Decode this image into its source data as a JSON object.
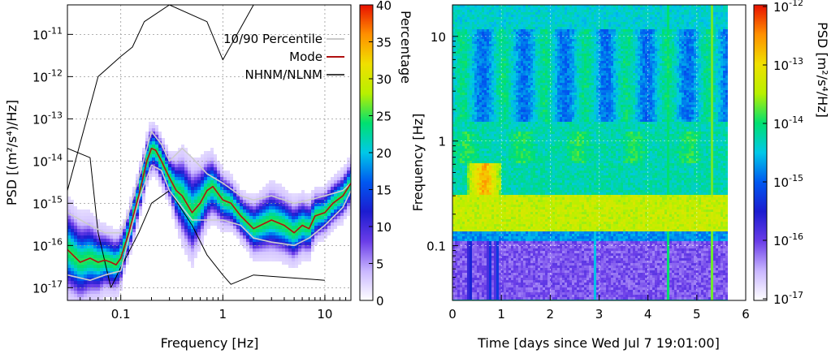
{
  "chart_data": [
    {
      "type": "heatmap",
      "subtype": "probabilistic-psd",
      "xlabel": "Frequency [Hz]",
      "ylabel": "PSD [(m²/s⁴)/Hz]",
      "xscale": "log",
      "yscale": "log",
      "xlim": [
        0.03,
        18
      ],
      "ylim": [
        5e-18,
        5e-11
      ],
      "x_ticks": [
        {
          "value": 0.1,
          "label": "0.1"
        },
        {
          "value": 1,
          "label": "1"
        },
        {
          "value": 10,
          "label": "10"
        }
      ],
      "y_ticks": [
        {
          "value": 1e-17,
          "mant": "10",
          "exp": "-17"
        },
        {
          "value": 1e-16,
          "mant": "10",
          "exp": "-16"
        },
        {
          "value": 1e-15,
          "mant": "10",
          "exp": "-15"
        },
        {
          "value": 1e-14,
          "mant": "10",
          "exp": "-14"
        },
        {
          "value": 1e-13,
          "mant": "10",
          "exp": "-13"
        },
        {
          "value": 1e-12,
          "mant": "10",
          "exp": "-12"
        },
        {
          "value": 1e-11,
          "mant": "10",
          "exp": "-11"
        }
      ],
      "grid": true,
      "legend": {
        "position": "top-right",
        "entries": [
          {
            "label": "10/90 Percentile",
            "color": "#b8b8b8"
          },
          {
            "label": "Mode",
            "color": "#b01010"
          },
          {
            "label": "NHNM/NLNM",
            "color": "#000000"
          }
        ]
      },
      "colorbar": {
        "label": "Percentage",
        "min": 0,
        "max": 40,
        "ticks": [
          0,
          5,
          10,
          15,
          20,
          25,
          30,
          35,
          40
        ],
        "colors": [
          "#ffffff",
          "#c9b6ff",
          "#6a3de8",
          "#1c1cd0",
          "#0058f0",
          "#00c8e8",
          "#00e070",
          "#b8f000",
          "#f0e000",
          "#ff9000",
          "#e81000"
        ]
      },
      "series": [
        {
          "name": "Mode",
          "x": [
            0.03,
            0.04,
            0.05,
            0.06,
            0.07,
            0.08,
            0.09,
            0.1,
            0.12,
            0.15,
            0.18,
            0.2,
            0.22,
            0.25,
            0.3,
            0.35,
            0.4,
            0.5,
            0.6,
            0.7,
            0.8,
            1.0,
            1.2,
            1.5,
            2.0,
            3.0,
            4.0,
            5.0,
            6.0,
            7.0,
            8.0,
            10.0,
            12.0,
            15.0,
            18.0
          ],
          "y": [
            8e-17,
            4e-17,
            5e-17,
            4e-17,
            4.5e-17,
            4e-17,
            3.5e-17,
            5e-17,
            2e-16,
            1.5e-15,
            1e-14,
            2e-14,
            1.8e-14,
            1e-14,
            4e-15,
            2e-15,
            1.5e-15,
            6e-16,
            1e-15,
            2e-15,
            2.5e-15,
            1.2e-15,
            1e-15,
            5e-16,
            2.5e-16,
            4e-16,
            3e-16,
            2e-16,
            3e-16,
            2.5e-16,
            5e-16,
            6e-16,
            1e-15,
            1.5e-15,
            3e-15
          ]
        },
        {
          "name": "10/90 Percentile",
          "x": [
            0.03,
            0.05,
            0.07,
            0.1,
            0.12,
            0.15,
            0.2,
            0.25,
            0.3,
            0.4,
            0.5,
            0.7,
            1.0,
            1.5,
            2.0,
            3.0,
            5.0,
            7.0,
            10.0,
            15.0,
            18.0
          ],
          "y": [
            6e-16,
            3e-16,
            2e-16,
            2e-16,
            6e-16,
            4e-15,
            5e-14,
            2.5e-14,
            1e-14,
            2e-14,
            1.2e-14,
            5e-15,
            3e-15,
            1.5e-15,
            1.2e-15,
            1.5e-15,
            1e-15,
            1.2e-15,
            1.5e-15,
            2e-15,
            3e-15
          ]
        },
        {
          "name": "10/90 Percentile",
          "x": [
            0.03,
            0.05,
            0.07,
            0.1,
            0.12,
            0.15,
            0.2,
            0.25,
            0.3,
            0.4,
            0.5,
            0.7,
            1.0,
            1.5,
            2.0,
            3.0,
            5.0,
            7.0,
            10.0,
            15.0,
            18.0
          ],
          "y": [
            2e-17,
            1.5e-17,
            2e-17,
            2.5e-17,
            1.5e-16,
            1.2e-15,
            8e-15,
            6e-15,
            2e-15,
            8e-16,
            4e-16,
            4e-16,
            4e-16,
            3e-16,
            1.5e-16,
            1.2e-16,
            1e-16,
            1.5e-16,
            3e-16,
            8e-16,
            2e-15
          ]
        },
        {
          "name": "NHNM",
          "x": [
            0.03,
            0.06,
            0.1,
            0.13,
            0.17,
            0.3,
            0.7,
            1.0,
            2.0
          ],
          "y": [
            2e-15,
            1e-12,
            3e-12,
            5e-12,
            2e-11,
            5e-11,
            2e-11,
            2.5e-12,
            5e-11
          ]
        },
        {
          "name": "NLNM",
          "x": [
            0.03,
            0.05,
            0.06,
            0.08,
            0.1,
            0.15,
            0.2,
            0.3,
            0.5,
            0.7,
            1.0,
            1.2,
            2.0,
            10.0
          ],
          "y": [
            2e-14,
            1.2e-14,
            2e-16,
            1e-17,
            3e-17,
            2e-16,
            1e-15,
            2e-15,
            3e-16,
            6e-17,
            2e-17,
            1.2e-17,
            2e-17,
            1.5e-17
          ]
        }
      ]
    },
    {
      "type": "heatmap",
      "subtype": "spectrogram",
      "xlabel": "Time [days since Wed Jul 7 19:01:00]",
      "ylabel": "Frequency [Hz]",
      "xscale": "linear",
      "yscale": "log",
      "xlim": [
        0,
        6
      ],
      "ylim": [
        0.03,
        20
      ],
      "x_ticks": [
        0,
        1,
        2,
        3,
        4,
        5,
        6
      ],
      "y_ticks": [
        {
          "value": 0.1,
          "label": "0.1"
        },
        {
          "value": 1,
          "label": "1"
        },
        {
          "value": 10,
          "label": "10"
        }
      ],
      "data_extent_x": [
        0,
        5.6
      ],
      "grid": true,
      "colorbar": {
        "label": "PSD [m²/s⁴/Hz]",
        "scale": "log",
        "min": 1e-17,
        "max": 1e-12,
        "ticks": [
          {
            "value": 1e-17,
            "mant": "10",
            "exp": "-17"
          },
          {
            "value": 1e-16,
            "mant": "10",
            "exp": "-16"
          },
          {
            "value": 1e-15,
            "mant": "10",
            "exp": "-15"
          },
          {
            "value": 1e-14,
            "mant": "10",
            "exp": "-14"
          },
          {
            "value": 1e-13,
            "mant": "10",
            "exp": "-13"
          },
          {
            "value": 1e-12,
            "mant": "10",
            "exp": "-12"
          }
        ],
        "colors": [
          "#ffffff",
          "#c9b6ff",
          "#6a3de8",
          "#1c1cd0",
          "#0058f0",
          "#00c8e8",
          "#00e070",
          "#b8f000",
          "#f0e000",
          "#ff9000",
          "#e81000"
        ]
      },
      "bands": [
        {
          "f_low": 0.03,
          "f_high": 0.11,
          "level": 0.18
        },
        {
          "f_low": 0.11,
          "f_high": 0.14,
          "level": 0.45
        },
        {
          "f_low": 0.14,
          "f_high": 0.3,
          "level": 0.72
        },
        {
          "f_low": 0.3,
          "f_high": 1.5,
          "level": 0.55
        },
        {
          "f_low": 1.5,
          "f_high": 20,
          "level": 0.52
        }
      ],
      "events": [
        {
          "t_start": 0.3,
          "t_end": 1.0,
          "f_low": 0.3,
          "f_high": 0.6,
          "level": 0.88
        }
      ],
      "transients": [
        0.35,
        0.75,
        0.9,
        2.9,
        4.4,
        5.3
      ]
    }
  ]
}
